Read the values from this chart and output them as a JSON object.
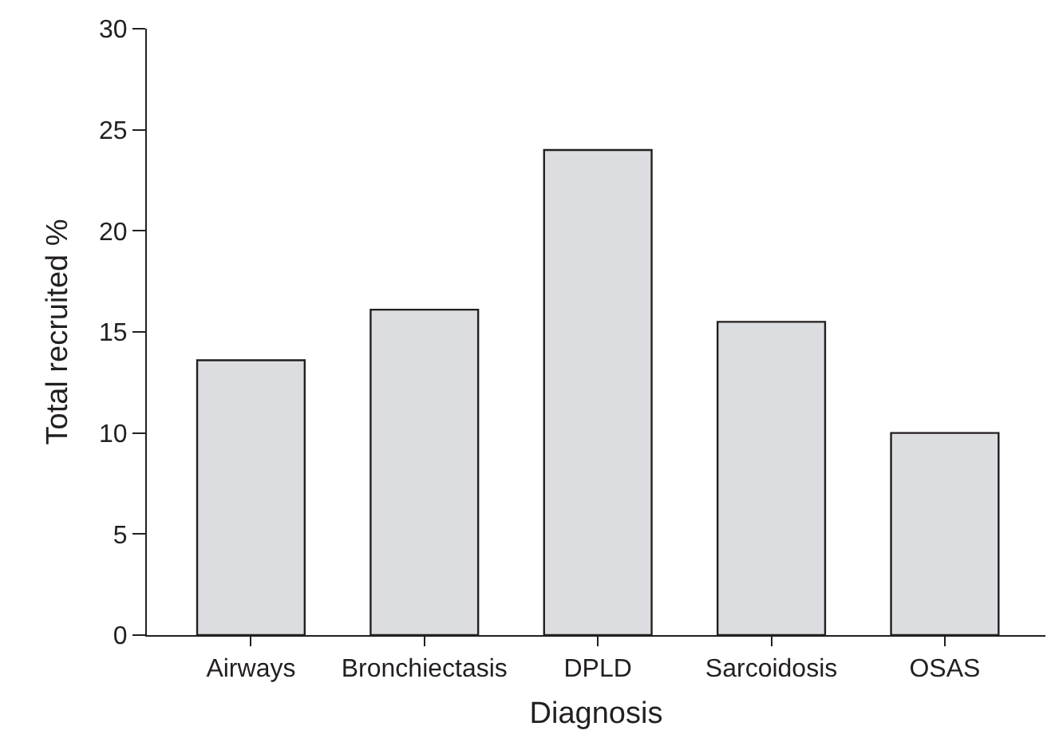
{
  "chart_data": {
    "type": "bar",
    "xlabel": "Diagnosis",
    "ylabel": "Total recruited %",
    "categories": [
      "Airways",
      "Bronchiectasis",
      "DPLD",
      "Sarcoidosis",
      "OSAS"
    ],
    "values": [
      13.6,
      16.1,
      24.0,
      15.5,
      10.0
    ],
    "color": "#dcdde0",
    "ylim": [
      0,
      30
    ],
    "yticks": [
      0,
      5,
      10,
      15,
      20,
      25,
      30
    ]
  }
}
